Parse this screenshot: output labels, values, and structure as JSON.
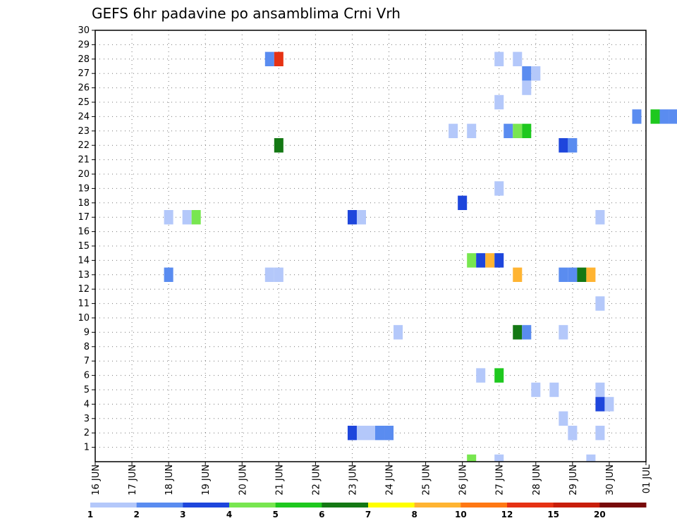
{
  "chart_data": {
    "type": "heatmap",
    "title": "GEFS 6hr padavine po ansamblima Crni Vrh",
    "xlabel": "",
    "ylabel": "",
    "x_tick_labels": [
      "16 JUN",
      "17 JUN",
      "18 JUN",
      "19 JUN",
      "20 JUN",
      "21 JUN",
      "22 JUN",
      "23 JUN",
      "24 JUN",
      "25 JUN",
      "26 JUN",
      "27 JUN",
      "28 JUN",
      "29 JUN",
      "30 JUN",
      "01 JUL"
    ],
    "y_tick_labels": [
      "1",
      "2",
      "3",
      "4",
      "5",
      "6",
      "7",
      "8",
      "9",
      "10",
      "11",
      "12",
      "13",
      "14",
      "15",
      "16",
      "17",
      "18",
      "19",
      "20",
      "21",
      "22",
      "23",
      "24",
      "25",
      "26",
      "27",
      "28",
      "29",
      "30"
    ],
    "xlim_days": [
      0,
      15
    ],
    "ylim": [
      0,
      30
    ],
    "grid": true,
    "colorbar": {
      "levels": [
        "1",
        "2",
        "3",
        "4",
        "5",
        "6",
        "7",
        "8",
        "10",
        "12",
        "15",
        "20"
      ],
      "colors": [
        "#b4c8fa",
        "#5a8cf0",
        "#1e46dc",
        "#78e650",
        "#1ec81e",
        "#147814",
        "#ffff00",
        "#ffb432",
        "#ff7814",
        "#e63214",
        "#c81e0a",
        "#780a0a"
      ]
    },
    "cell_width_days": 0.25,
    "cells": [
      {
        "m": 28,
        "t": 4.75,
        "c": 2
      },
      {
        "m": 28,
        "t": 5.0,
        "c": 10
      },
      {
        "m": 22,
        "t": 5.0,
        "c": 6
      },
      {
        "m": 28,
        "t": 11.0,
        "c": 1
      },
      {
        "m": 28,
        "t": 11.5,
        "c": 1
      },
      {
        "m": 27,
        "t": 11.75,
        "c": 2
      },
      {
        "m": 27,
        "t": 12.0,
        "c": 1
      },
      {
        "m": 26,
        "t": 11.75,
        "c": 1
      },
      {
        "m": 25,
        "t": 11.0,
        "c": 1
      },
      {
        "m": 24,
        "t": 14.75,
        "c": 2
      },
      {
        "m": 24,
        "t": 15.25,
        "c": 5
      },
      {
        "m": 24,
        "t": 15.5,
        "c": 2
      },
      {
        "m": 24,
        "t": 15.75,
        "c": 2
      },
      {
        "m": 23,
        "t": 9.75,
        "c": 1
      },
      {
        "m": 23,
        "t": 10.25,
        "c": 1
      },
      {
        "m": 23,
        "t": 11.25,
        "c": 2
      },
      {
        "m": 23,
        "t": 11.5,
        "c": 4
      },
      {
        "m": 23,
        "t": 11.75,
        "c": 5
      },
      {
        "m": 22,
        "t": 12.75,
        "c": 3
      },
      {
        "m": 22,
        "t": 13.0,
        "c": 2
      },
      {
        "m": 19,
        "t": 11.0,
        "c": 1
      },
      {
        "m": 18,
        "t": 10.0,
        "c": 3
      },
      {
        "m": 17,
        "t": 2.0,
        "c": 1
      },
      {
        "m": 17,
        "t": 2.5,
        "c": 1
      },
      {
        "m": 17,
        "t": 2.75,
        "c": 4
      },
      {
        "m": 17,
        "t": 7.0,
        "c": 3
      },
      {
        "m": 17,
        "t": 7.25,
        "c": 1
      },
      {
        "m": 17,
        "t": 13.75,
        "c": 1
      },
      {
        "m": 14,
        "t": 10.25,
        "c": 4
      },
      {
        "m": 14,
        "t": 10.5,
        "c": 3
      },
      {
        "m": 14,
        "t": 10.75,
        "c": 8
      },
      {
        "m": 14,
        "t": 11.0,
        "c": 3
      },
      {
        "m": 13,
        "t": 2.0,
        "c": 2
      },
      {
        "m": 13,
        "t": 4.75,
        "c": 1
      },
      {
        "m": 13,
        "t": 5.0,
        "c": 1
      },
      {
        "m": 13,
        "t": 11.5,
        "c": 8
      },
      {
        "m": 13,
        "t": 12.75,
        "c": 2
      },
      {
        "m": 13,
        "t": 13.0,
        "c": 2
      },
      {
        "m": 13,
        "t": 13.25,
        "c": 6
      },
      {
        "m": 13,
        "t": 13.5,
        "c": 8
      },
      {
        "m": 11,
        "t": 13.75,
        "c": 1
      },
      {
        "m": 9,
        "t": 8.25,
        "c": 1
      },
      {
        "m": 9,
        "t": 11.5,
        "c": 6
      },
      {
        "m": 9,
        "t": 11.75,
        "c": 2
      },
      {
        "m": 9,
        "t": 12.75,
        "c": 1
      },
      {
        "m": 6,
        "t": 10.5,
        "c": 1
      },
      {
        "m": 6,
        "t": 11.0,
        "c": 5
      },
      {
        "m": 5,
        "t": 12.0,
        "c": 1
      },
      {
        "m": 5,
        "t": 12.5,
        "c": 1
      },
      {
        "m": 5,
        "t": 13.75,
        "c": 1
      },
      {
        "m": 4,
        "t": 13.75,
        "c": 3
      },
      {
        "m": 4,
        "t": 14.0,
        "c": 1
      },
      {
        "m": 3,
        "t": 12.75,
        "c": 1
      },
      {
        "m": 2,
        "t": 7.0,
        "c": 3
      },
      {
        "m": 2,
        "t": 7.25,
        "c": 1
      },
      {
        "m": 2,
        "t": 7.5,
        "c": 1
      },
      {
        "m": 2,
        "t": 7.75,
        "c": 2
      },
      {
        "m": 2,
        "t": 8.0,
        "c": 2
      },
      {
        "m": 2,
        "t": 13.0,
        "c": 1
      },
      {
        "m": 2,
        "t": 13.75,
        "c": 1
      },
      {
        "m": 0,
        "t": 10.25,
        "c": 4
      },
      {
        "m": 0,
        "t": 11.0,
        "c": 1
      },
      {
        "m": 0,
        "t": 13.5,
        "c": 1
      }
    ]
  }
}
